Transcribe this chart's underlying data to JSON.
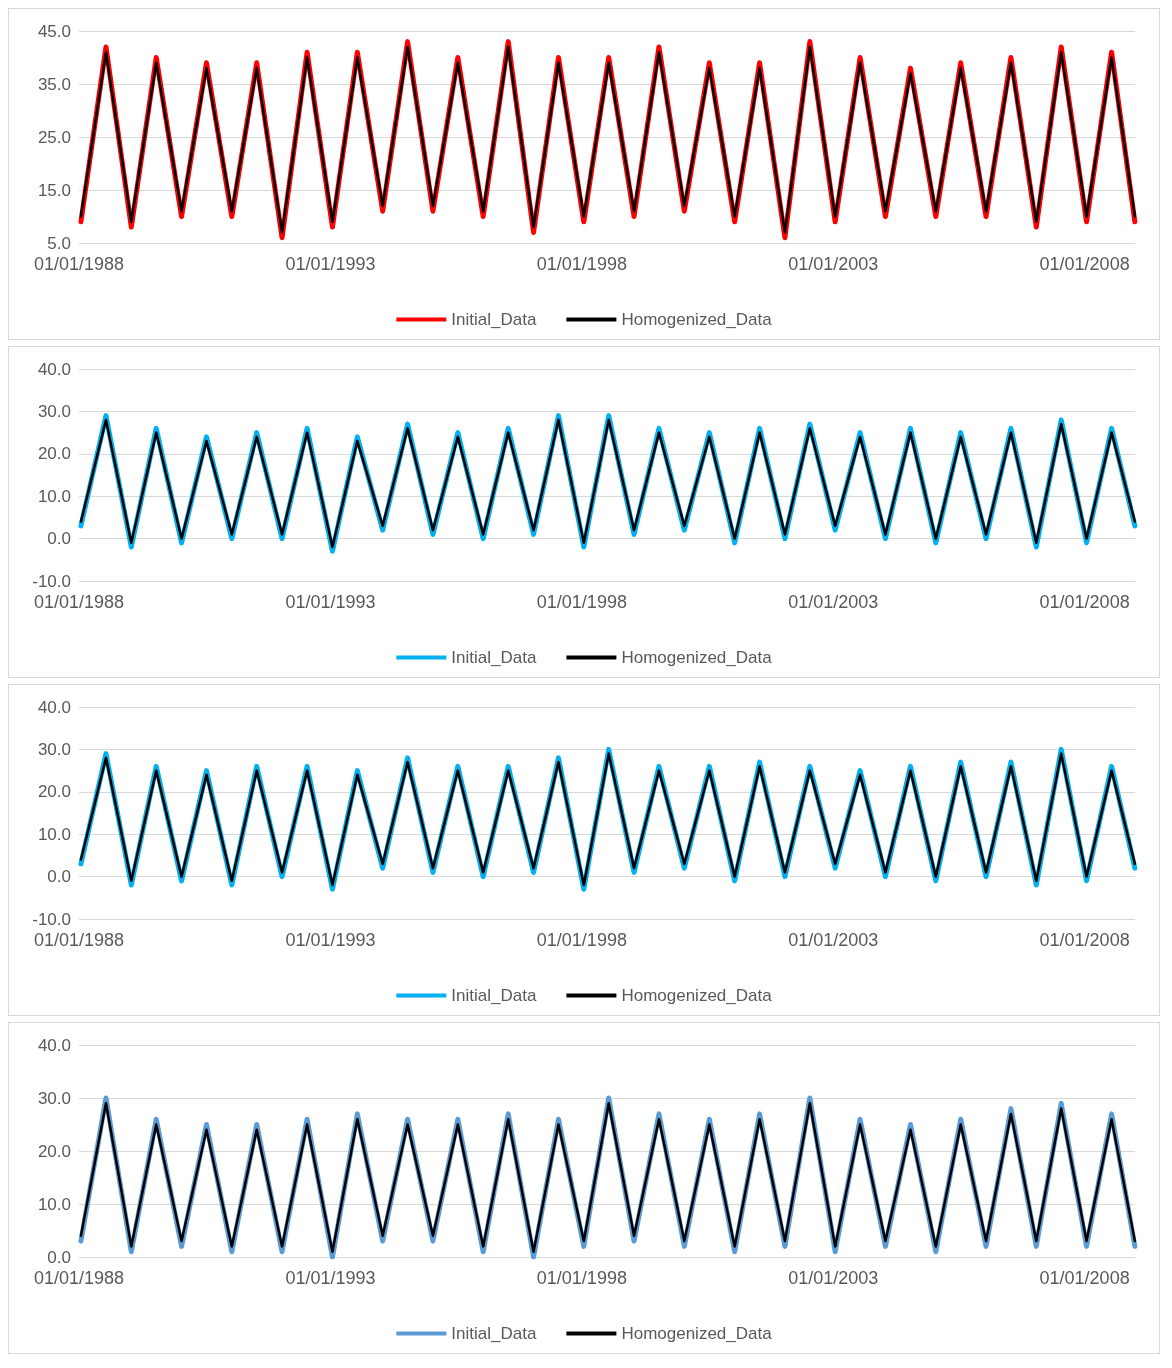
{
  "chart_data": [
    {
      "type": "line",
      "x": [
        "1988-01-15",
        "1988-07-15",
        "1989-01-15",
        "1989-07-15",
        "1990-01-15",
        "1990-07-15",
        "1991-01-15",
        "1991-07-15",
        "1992-01-15",
        "1992-07-15",
        "1993-01-15",
        "1993-07-15",
        "1994-01-15",
        "1994-07-15",
        "1995-01-15",
        "1995-07-15",
        "1996-01-15",
        "1996-07-15",
        "1997-01-15",
        "1997-07-15",
        "1998-01-15",
        "1998-07-15",
        "1999-01-15",
        "1999-07-15",
        "2000-01-15",
        "2000-07-15",
        "2001-01-15",
        "2001-07-15",
        "2002-01-15",
        "2002-07-15",
        "2003-01-15",
        "2003-07-15",
        "2004-01-15",
        "2004-07-15",
        "2005-01-15",
        "2005-07-15",
        "2006-01-15",
        "2006-07-15",
        "2007-01-15",
        "2007-07-15",
        "2008-01-15",
        "2008-07-15",
        "2008-12-31"
      ],
      "xlim": [
        "1988-01-01",
        "2009-01-01"
      ],
      "xticks": [
        {
          "value": "1988-01-01",
          "label": "01/01/1988"
        },
        {
          "value": "1993-01-01",
          "label": "01/01/1993"
        },
        {
          "value": "1998-01-01",
          "label": "01/01/1998"
        },
        {
          "value": "2003-01-01",
          "label": "01/01/2003"
        },
        {
          "value": "2008-01-01",
          "label": "01/01/2008"
        }
      ],
      "ylim": [
        5,
        45
      ],
      "yticks": [
        {
          "value": 5,
          "label": "5.0"
        },
        {
          "value": 15,
          "label": "15.0"
        },
        {
          "value": 25,
          "label": "25.0"
        },
        {
          "value": 35,
          "label": "35.0"
        },
        {
          "value": 45,
          "label": "45.0"
        }
      ],
      "grid": "y",
      "legend": "bottom",
      "marker": "none",
      "series": [
        {
          "name": "Initial_Data",
          "color": "#ff0000",
          "values": [
            9,
            42,
            8,
            40,
            10,
            39,
            10,
            39,
            6,
            41,
            8,
            41,
            11,
            43,
            11,
            40,
            10,
            43,
            7,
            40,
            9,
            40,
            10,
            42,
            11,
            39,
            9,
            39,
            6,
            43,
            9,
            40,
            10,
            38,
            10,
            39,
            10,
            40,
            8,
            42,
            9,
            41,
            9
          ]
        },
        {
          "name": "Homogenized_Data",
          "color": "#000000",
          "values": [
            10,
            41,
            9,
            39,
            11,
            38,
            11,
            38,
            7,
            40,
            9,
            40,
            12,
            42,
            12,
            39,
            11,
            42,
            8,
            39,
            10,
            39,
            11,
            41,
            12,
            38,
            10,
            38,
            7,
            42,
            10,
            39,
            11,
            37,
            11,
            38,
            11,
            39,
            9,
            41,
            10,
            40,
            10
          ]
        }
      ]
    },
    {
      "type": "line",
      "x": [
        "1988-01-15",
        "1988-07-15",
        "1989-01-15",
        "1989-07-15",
        "1990-01-15",
        "1990-07-15",
        "1991-01-15",
        "1991-07-15",
        "1992-01-15",
        "1992-07-15",
        "1993-01-15",
        "1993-07-15",
        "1994-01-15",
        "1994-07-15",
        "1995-01-15",
        "1995-07-15",
        "1996-01-15",
        "1996-07-15",
        "1997-01-15",
        "1997-07-15",
        "1998-01-15",
        "1998-07-15",
        "1999-01-15",
        "1999-07-15",
        "2000-01-15",
        "2000-07-15",
        "2001-01-15",
        "2001-07-15",
        "2002-01-15",
        "2002-07-15",
        "2003-01-15",
        "2003-07-15",
        "2004-01-15",
        "2004-07-15",
        "2005-01-15",
        "2005-07-15",
        "2006-01-15",
        "2006-07-15",
        "2007-01-15",
        "2007-07-15",
        "2008-01-15",
        "2008-07-15",
        "2008-12-31"
      ],
      "xlim": [
        "1988-01-01",
        "2009-01-01"
      ],
      "xticks": [
        {
          "value": "1988-01-01",
          "label": "01/01/1988"
        },
        {
          "value": "1993-01-01",
          "label": "01/01/1993"
        },
        {
          "value": "1998-01-01",
          "label": "01/01/1998"
        },
        {
          "value": "2003-01-01",
          "label": "01/01/2003"
        },
        {
          "value": "2008-01-01",
          "label": "01/01/2008"
        }
      ],
      "ylim": [
        -10,
        40
      ],
      "yticks": [
        {
          "value": -10,
          "label": "-10.0"
        },
        {
          "value": 0,
          "label": "0.0"
        },
        {
          "value": 10,
          "label": "10.0"
        },
        {
          "value": 20,
          "label": "20.0"
        },
        {
          "value": 30,
          "label": "30.0"
        },
        {
          "value": 40,
          "label": "40.0"
        }
      ],
      "grid": "y",
      "legend": "bottom",
      "marker": "none",
      "series": [
        {
          "name": "Initial_Data",
          "color": "#00b0f0",
          "values": [
            3,
            29,
            -2,
            26,
            -1,
            24,
            0,
            25,
            0,
            26,
            -3,
            24,
            2,
            27,
            1,
            25,
            0,
            26,
            1,
            29,
            -2,
            29,
            1,
            26,
            2,
            25,
            -1,
            26,
            0,
            27,
            2,
            25,
            0,
            26,
            -1,
            25,
            0,
            26,
            -2,
            28,
            -1,
            26,
            3
          ]
        },
        {
          "name": "Homogenized_Data",
          "color": "#000000",
          "values": [
            4,
            28,
            -1,
            25,
            0,
            23,
            1,
            24,
            1,
            25,
            -2,
            23,
            3,
            26,
            2,
            24,
            1,
            25,
            2,
            28,
            -1,
            28,
            2,
            25,
            3,
            24,
            0,
            25,
            1,
            26,
            3,
            24,
            1,
            25,
            0,
            24,
            1,
            25,
            -1,
            27,
            0,
            25,
            4
          ]
        }
      ]
    },
    {
      "type": "line",
      "x": [
        "1988-01-15",
        "1988-07-15",
        "1989-01-15",
        "1989-07-15",
        "1990-01-15",
        "1990-07-15",
        "1991-01-15",
        "1991-07-15",
        "1992-01-15",
        "1992-07-15",
        "1993-01-15",
        "1993-07-15",
        "1994-01-15",
        "1994-07-15",
        "1995-01-15",
        "1995-07-15",
        "1996-01-15",
        "1996-07-15",
        "1997-01-15",
        "1997-07-15",
        "1998-01-15",
        "1998-07-15",
        "1999-01-15",
        "1999-07-15",
        "2000-01-15",
        "2000-07-15",
        "2001-01-15",
        "2001-07-15",
        "2002-01-15",
        "2002-07-15",
        "2003-01-15",
        "2003-07-15",
        "2004-01-15",
        "2004-07-15",
        "2005-01-15",
        "2005-07-15",
        "2006-01-15",
        "2006-07-15",
        "2007-01-15",
        "2007-07-15",
        "2008-01-15",
        "2008-07-15",
        "2008-12-31"
      ],
      "xlim": [
        "1988-01-01",
        "2009-01-01"
      ],
      "xticks": [
        {
          "value": "1988-01-01",
          "label": "01/01/1988"
        },
        {
          "value": "1993-01-01",
          "label": "01/01/1993"
        },
        {
          "value": "1998-01-01",
          "label": "01/01/1998"
        },
        {
          "value": "2003-01-01",
          "label": "01/01/2003"
        },
        {
          "value": "2008-01-01",
          "label": "01/01/2008"
        }
      ],
      "ylim": [
        -10,
        40
      ],
      "yticks": [
        {
          "value": -10,
          "label": "-10.0"
        },
        {
          "value": 0,
          "label": "0.0"
        },
        {
          "value": 10,
          "label": "10.0"
        },
        {
          "value": 20,
          "label": "20.0"
        },
        {
          "value": 30,
          "label": "30.0"
        },
        {
          "value": 40,
          "label": "40.0"
        }
      ],
      "grid": "y",
      "legend": "bottom",
      "marker": "none",
      "series": [
        {
          "name": "Initial_Data",
          "color": "#00b0f0",
          "values": [
            3,
            29,
            -2,
            26,
            -1,
            25,
            -2,
            26,
            0,
            26,
            -3,
            25,
            2,
            28,
            1,
            26,
            0,
            26,
            1,
            28,
            -3,
            30,
            1,
            26,
            2,
            26,
            -1,
            27,
            0,
            26,
            2,
            25,
            0,
            26,
            -1,
            27,
            0,
            27,
            -2,
            30,
            -1,
            26,
            2
          ]
        },
        {
          "name": "Homogenized_Data",
          "color": "#000000",
          "values": [
            4,
            28,
            -1,
            25,
            0,
            24,
            -1,
            25,
            1,
            25,
            -2,
            24,
            3,
            27,
            2,
            25,
            1,
            25,
            2,
            27,
            -2,
            29,
            2,
            25,
            3,
            25,
            0,
            26,
            1,
            25,
            3,
            24,
            1,
            25,
            0,
            26,
            1,
            26,
            -1,
            29,
            0,
            25,
            3
          ]
        }
      ]
    },
    {
      "type": "line",
      "x": [
        "1988-01-15",
        "1988-07-15",
        "1989-01-15",
        "1989-07-15",
        "1990-01-15",
        "1990-07-15",
        "1991-01-15",
        "1991-07-15",
        "1992-01-15",
        "1992-07-15",
        "1993-01-15",
        "1993-07-15",
        "1994-01-15",
        "1994-07-15",
        "1995-01-15",
        "1995-07-15",
        "1996-01-15",
        "1996-07-15",
        "1997-01-15",
        "1997-07-15",
        "1998-01-15",
        "1998-07-15",
        "1999-01-15",
        "1999-07-15",
        "2000-01-15",
        "2000-07-15",
        "2001-01-15",
        "2001-07-15",
        "2002-01-15",
        "2002-07-15",
        "2003-01-15",
        "2003-07-15",
        "2004-01-15",
        "2004-07-15",
        "2005-01-15",
        "2005-07-15",
        "2006-01-15",
        "2006-07-15",
        "2007-01-15",
        "2007-07-15",
        "2008-01-15",
        "2008-07-15",
        "2008-12-31"
      ],
      "xlim": [
        "1988-01-01",
        "2009-01-01"
      ],
      "xticks": [
        {
          "value": "1988-01-01",
          "label": "01/01/1988"
        },
        {
          "value": "1993-01-01",
          "label": "01/01/1993"
        },
        {
          "value": "1998-01-01",
          "label": "01/01/1998"
        },
        {
          "value": "2003-01-01",
          "label": "01/01/2003"
        },
        {
          "value": "2008-01-01",
          "label": "01/01/2008"
        }
      ],
      "ylim": [
        0,
        40
      ],
      "yticks": [
        {
          "value": 0,
          "label": "0.0"
        },
        {
          "value": 10,
          "label": "10.0"
        },
        {
          "value": 20,
          "label": "20.0"
        },
        {
          "value": 30,
          "label": "30.0"
        },
        {
          "value": 40,
          "label": "40.0"
        }
      ],
      "grid": "y",
      "legend": "bottom",
      "marker": "none",
      "series": [
        {
          "name": "Initial_Data",
          "color": "#5b9bd5",
          "values": [
            3,
            30,
            1,
            26,
            2,
            25,
            1,
            25,
            1,
            26,
            0,
            27,
            3,
            26,
            3,
            26,
            1,
            27,
            0,
            26,
            2,
            30,
            3,
            27,
            2,
            26,
            1,
            27,
            2,
            30,
            1,
            26,
            2,
            25,
            1,
            26,
            2,
            28,
            2,
            29,
            2,
            27,
            2
          ]
        },
        {
          "name": "Homogenized_Data",
          "color": "#000000",
          "values": [
            4,
            29,
            2,
            25,
            3,
            24,
            2,
            24,
            2,
            25,
            1,
            26,
            4,
            25,
            4,
            25,
            2,
            26,
            1,
            25,
            3,
            29,
            4,
            26,
            3,
            25,
            2,
            26,
            3,
            29,
            2,
            25,
            3,
            24,
            2,
            25,
            3,
            27,
            3,
            28,
            3,
            26,
            3
          ]
        }
      ]
    }
  ]
}
